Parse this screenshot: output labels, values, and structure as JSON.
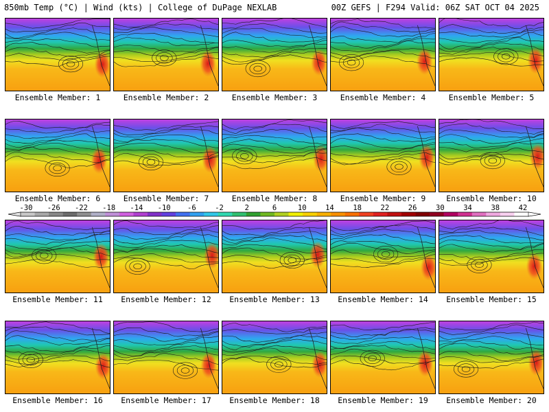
{
  "header": {
    "left": "850mb Temp (°C) | Wind (kts) | College of DuPage NEXLAB",
    "right": "00Z GEFS | F294 Valid: 06Z SAT OCT 04 2025"
  },
  "members": [
    "Ensemble Member: 1",
    "Ensemble Member: 2",
    "Ensemble Member: 3",
    "Ensemble Member: 4",
    "Ensemble Member: 5",
    "Ensemble Member: 6",
    "Ensemble Member: 7",
    "Ensemble Member: 8",
    "Ensemble Member: 9",
    "Ensemble Member: 10",
    "Ensemble Member: 11",
    "Ensemble Member: 12",
    "Ensemble Member: 13",
    "Ensemble Member: 14",
    "Ensemble Member: 15",
    "Ensemble Member: 16",
    "Ensemble Member: 17",
    "Ensemble Member: 18",
    "Ensemble Member: 19",
    "Ensemble Member: 20"
  ],
  "colorbar": {
    "ticks": [
      "-30",
      "-26",
      "-22",
      "-18",
      "-14",
      "-10",
      "-6",
      "-2",
      "2",
      "6",
      "10",
      "14",
      "18",
      "22",
      "26",
      "30",
      "34",
      "38",
      "42"
    ],
    "colors": [
      "#c8c8c8",
      "#a8a8a8",
      "#888888",
      "#6c6c6c",
      "#909090",
      "#b0b0c8",
      "#c090d8",
      "#d060e0",
      "#b040d0",
      "#8030c8",
      "#6040e0",
      "#4070f0",
      "#30a0f0",
      "#30c8e8",
      "#30d8b0",
      "#30c070",
      "#30a030",
      "#70b820",
      "#b0d020",
      "#f0f000",
      "#f8d000",
      "#f8b000",
      "#f89000",
      "#f87000",
      "#f04020",
      "#e02020",
      "#c01010",
      "#a00000",
      "#800000",
      "#900020",
      "#b00060",
      "#d03090",
      "#e070c0",
      "#f0a8e0",
      "#f8d0f0",
      "#ffffff"
    ]
  }
}
